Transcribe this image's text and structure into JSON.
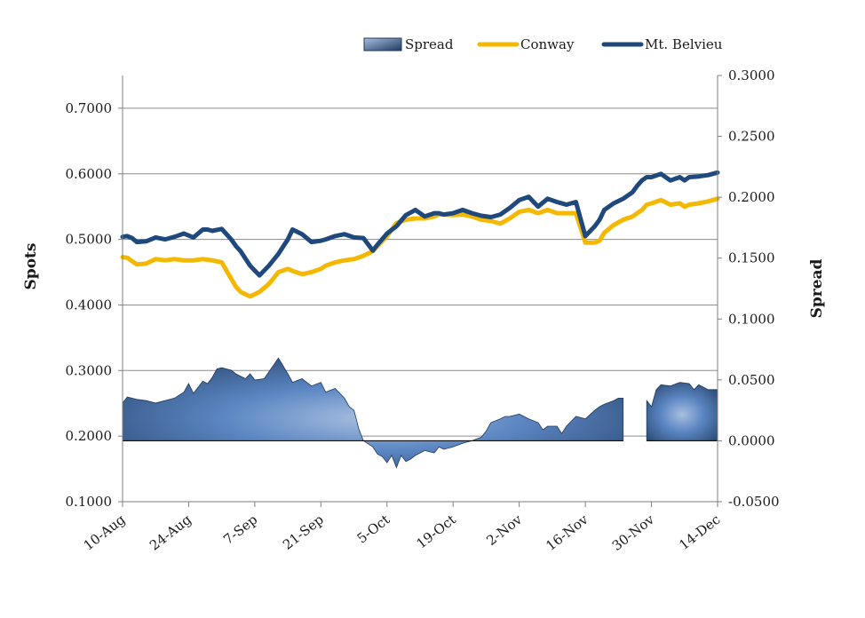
{
  "chart_data": {
    "type": "line",
    "title": "",
    "y_left_label": "Spots",
    "y_right_label": "Spread",
    "x_tick_labels": [
      "10-Aug",
      "24-Aug",
      "7-Sep",
      "21-Sep",
      "5-Oct",
      "19-Oct",
      "2-Nov",
      "16-Nov",
      "30-Nov",
      "14-Dec"
    ],
    "x_range_days": [
      0,
      126
    ],
    "y_left_range": [
      0.1,
      0.75
    ],
    "y_left_ticks": [
      "0.1000",
      "0.2000",
      "0.3000",
      "0.4000",
      "0.5000",
      "0.6000",
      "0.7000"
    ],
    "y_left_tick_values": [
      0.1,
      0.2,
      0.3,
      0.4,
      0.5,
      0.6,
      0.7
    ],
    "y_right_range": [
      -0.05,
      0.3
    ],
    "y_right_ticks": [
      "-0.0500",
      "0.0000",
      "0.0500",
      "0.1000",
      "0.1500",
      "0.2000",
      "0.2500",
      "0.3000"
    ],
    "y_right_tick_values": [
      -0.05,
      0.0,
      0.05,
      0.1,
      0.15,
      0.2,
      0.25,
      0.3
    ],
    "grid": "horizontal",
    "legend_position": "top-right",
    "series": [
      {
        "name": "Mt. Belvieu",
        "kind": "line",
        "axis": "left",
        "color": "#1f497d",
        "x": [
          0,
          1,
          2,
          3,
          5,
          7,
          9,
          11,
          13,
          15,
          17,
          18,
          19,
          21,
          23,
          24,
          25,
          27,
          29,
          31,
          33,
          35,
          36,
          38,
          40,
          42,
          43,
          45,
          47,
          49,
          51,
          53,
          54,
          56,
          58,
          60,
          62,
          64,
          66,
          67,
          68,
          70,
          72,
          74,
          76,
          78,
          80,
          82,
          84,
          86,
          88,
          90,
          92,
          94,
          96,
          98,
          100,
          101,
          102,
          104,
          106,
          108,
          109,
          110,
          111,
          112,
          114,
          116,
          118,
          119,
          120,
          122,
          124,
          126
        ],
        "y": [
          0.504,
          0.505,
          0.502,
          0.496,
          0.497,
          0.503,
          0.5,
          0.504,
          0.509,
          0.503,
          0.515,
          0.515,
          0.513,
          0.516,
          0.5,
          0.49,
          0.482,
          0.46,
          0.445,
          0.46,
          0.478,
          0.5,
          0.515,
          0.508,
          0.496,
          0.498,
          0.5,
          0.505,
          0.508,
          0.503,
          0.502,
          0.483,
          0.492,
          0.509,
          0.52,
          0.537,
          0.545,
          0.535,
          0.54,
          0.54,
          0.538,
          0.54,
          0.545,
          0.54,
          0.536,
          0.534,
          0.538,
          0.548,
          0.56,
          0.565,
          0.55,
          0.562,
          0.557,
          0.553,
          0.557,
          0.505,
          0.52,
          0.53,
          0.545,
          0.555,
          0.562,
          0.572,
          0.582,
          0.59,
          0.595,
          0.595,
          0.6,
          0.59,
          0.595,
          0.59,
          0.595,
          0.596,
          0.598,
          0.602
        ]
      },
      {
        "name": "Conway",
        "kind": "line",
        "axis": "left",
        "color": "#f5b800",
        "x": [
          0,
          1,
          2,
          3,
          5,
          7,
          9,
          11,
          13,
          15,
          17,
          18,
          19,
          21,
          23,
          24,
          25,
          27,
          29,
          31,
          33,
          35,
          36,
          38,
          40,
          42,
          43,
          45,
          47,
          49,
          51,
          53,
          54,
          56,
          58,
          60,
          62,
          64,
          66,
          67,
          68,
          70,
          72,
          74,
          76,
          78,
          80,
          82,
          84,
          86,
          88,
          90,
          92,
          94,
          96,
          98,
          100,
          101,
          102,
          104,
          106,
          108,
          109,
          110,
          111,
          112,
          114,
          116,
          118,
          119,
          120,
          122,
          124,
          126
        ],
        "y": [
          0.473,
          0.472,
          0.467,
          0.462,
          0.463,
          0.47,
          0.468,
          0.47,
          0.468,
          0.468,
          0.47,
          0.469,
          0.468,
          0.465,
          0.44,
          0.428,
          0.42,
          0.413,
          0.42,
          0.432,
          0.45,
          0.455,
          0.452,
          0.447,
          0.45,
          0.455,
          0.46,
          0.465,
          0.468,
          0.47,
          0.475,
          0.482,
          0.49,
          0.505,
          0.525,
          0.53,
          0.532,
          0.532,
          0.535,
          0.538,
          0.538,
          0.537,
          0.538,
          0.535,
          0.53,
          0.528,
          0.524,
          0.532,
          0.542,
          0.545,
          0.54,
          0.545,
          0.54,
          0.54,
          0.54,
          0.495,
          0.495,
          0.498,
          0.51,
          0.522,
          0.53,
          0.535,
          0.54,
          0.545,
          0.553,
          0.555,
          0.56,
          0.553,
          0.555,
          0.55,
          0.553,
          0.555,
          0.558,
          0.562
        ]
      },
      {
        "name": "Spread",
        "kind": "area",
        "axis": "right",
        "color": "#1f497d",
        "segments": [
          {
            "x": [
              0,
              1,
              2,
              3,
              5,
              7,
              9,
              11,
              13,
              14,
              15,
              16,
              17,
              18,
              19,
              20,
              21,
              22,
              23,
              24,
              26,
              27,
              28,
              30,
              33,
              35,
              36,
              38,
              40,
              42,
              43,
              45,
              47,
              48,
              49,
              50,
              51,
              53,
              54,
              55,
              56,
              57,
              58,
              59,
              60,
              61,
              62,
              64,
              66,
              67,
              68,
              70,
              72,
              74,
              76,
              77,
              78,
              80,
              81,
              82,
              84,
              86,
              88,
              89,
              90,
              92,
              93,
              94,
              96,
              98,
              100,
              101,
              102,
              104,
              105,
              106
            ],
            "y": [
              0.031,
              0.036,
              0.035,
              0.034,
              0.033,
              0.031,
              0.033,
              0.035,
              0.04,
              0.047,
              0.039,
              0.044,
              0.049,
              0.047,
              0.052,
              0.059,
              0.06,
              0.059,
              0.058,
              0.055,
              0.051,
              0.055,
              0.05,
              0.051,
              0.068,
              0.055,
              0.048,
              0.051,
              0.045,
              0.048,
              0.04,
              0.043,
              0.035,
              0.028,
              0.025,
              0.01,
              0.0,
              -0.005,
              -0.011,
              -0.013,
              -0.018,
              -0.012,
              -0.022,
              -0.012,
              -0.017,
              -0.015,
              -0.012,
              -0.008,
              -0.01,
              -0.005,
              -0.007,
              -0.005,
              -0.002,
              0.0,
              0.003,
              0.008,
              0.015,
              0.018,
              0.02,
              0.02,
              0.022,
              0.018,
              0.015,
              0.009,
              0.012,
              0.012,
              0.006,
              0.012,
              0.02,
              0.018,
              0.025,
              0.028,
              0.03,
              0.033,
              0.035,
              0.035
            ]
          },
          {
            "x": [
              111,
              112,
              113,
              114,
              116,
              118,
              120,
              121,
              122,
              124,
              126
            ],
            "y": [
              0.033,
              0.028,
              0.042,
              0.046,
              0.045,
              0.048,
              0.047,
              0.042,
              0.046,
              0.042,
              0.042
            ]
          }
        ]
      }
    ]
  },
  "legend": {
    "items": [
      {
        "label": "Spread",
        "kind": "swatch",
        "color": "#1f497d"
      },
      {
        "label": "Conway",
        "kind": "line",
        "color": "#f5b800"
      },
      {
        "label": "Mt. Belvieu",
        "kind": "line",
        "color": "#1f497d"
      }
    ]
  }
}
